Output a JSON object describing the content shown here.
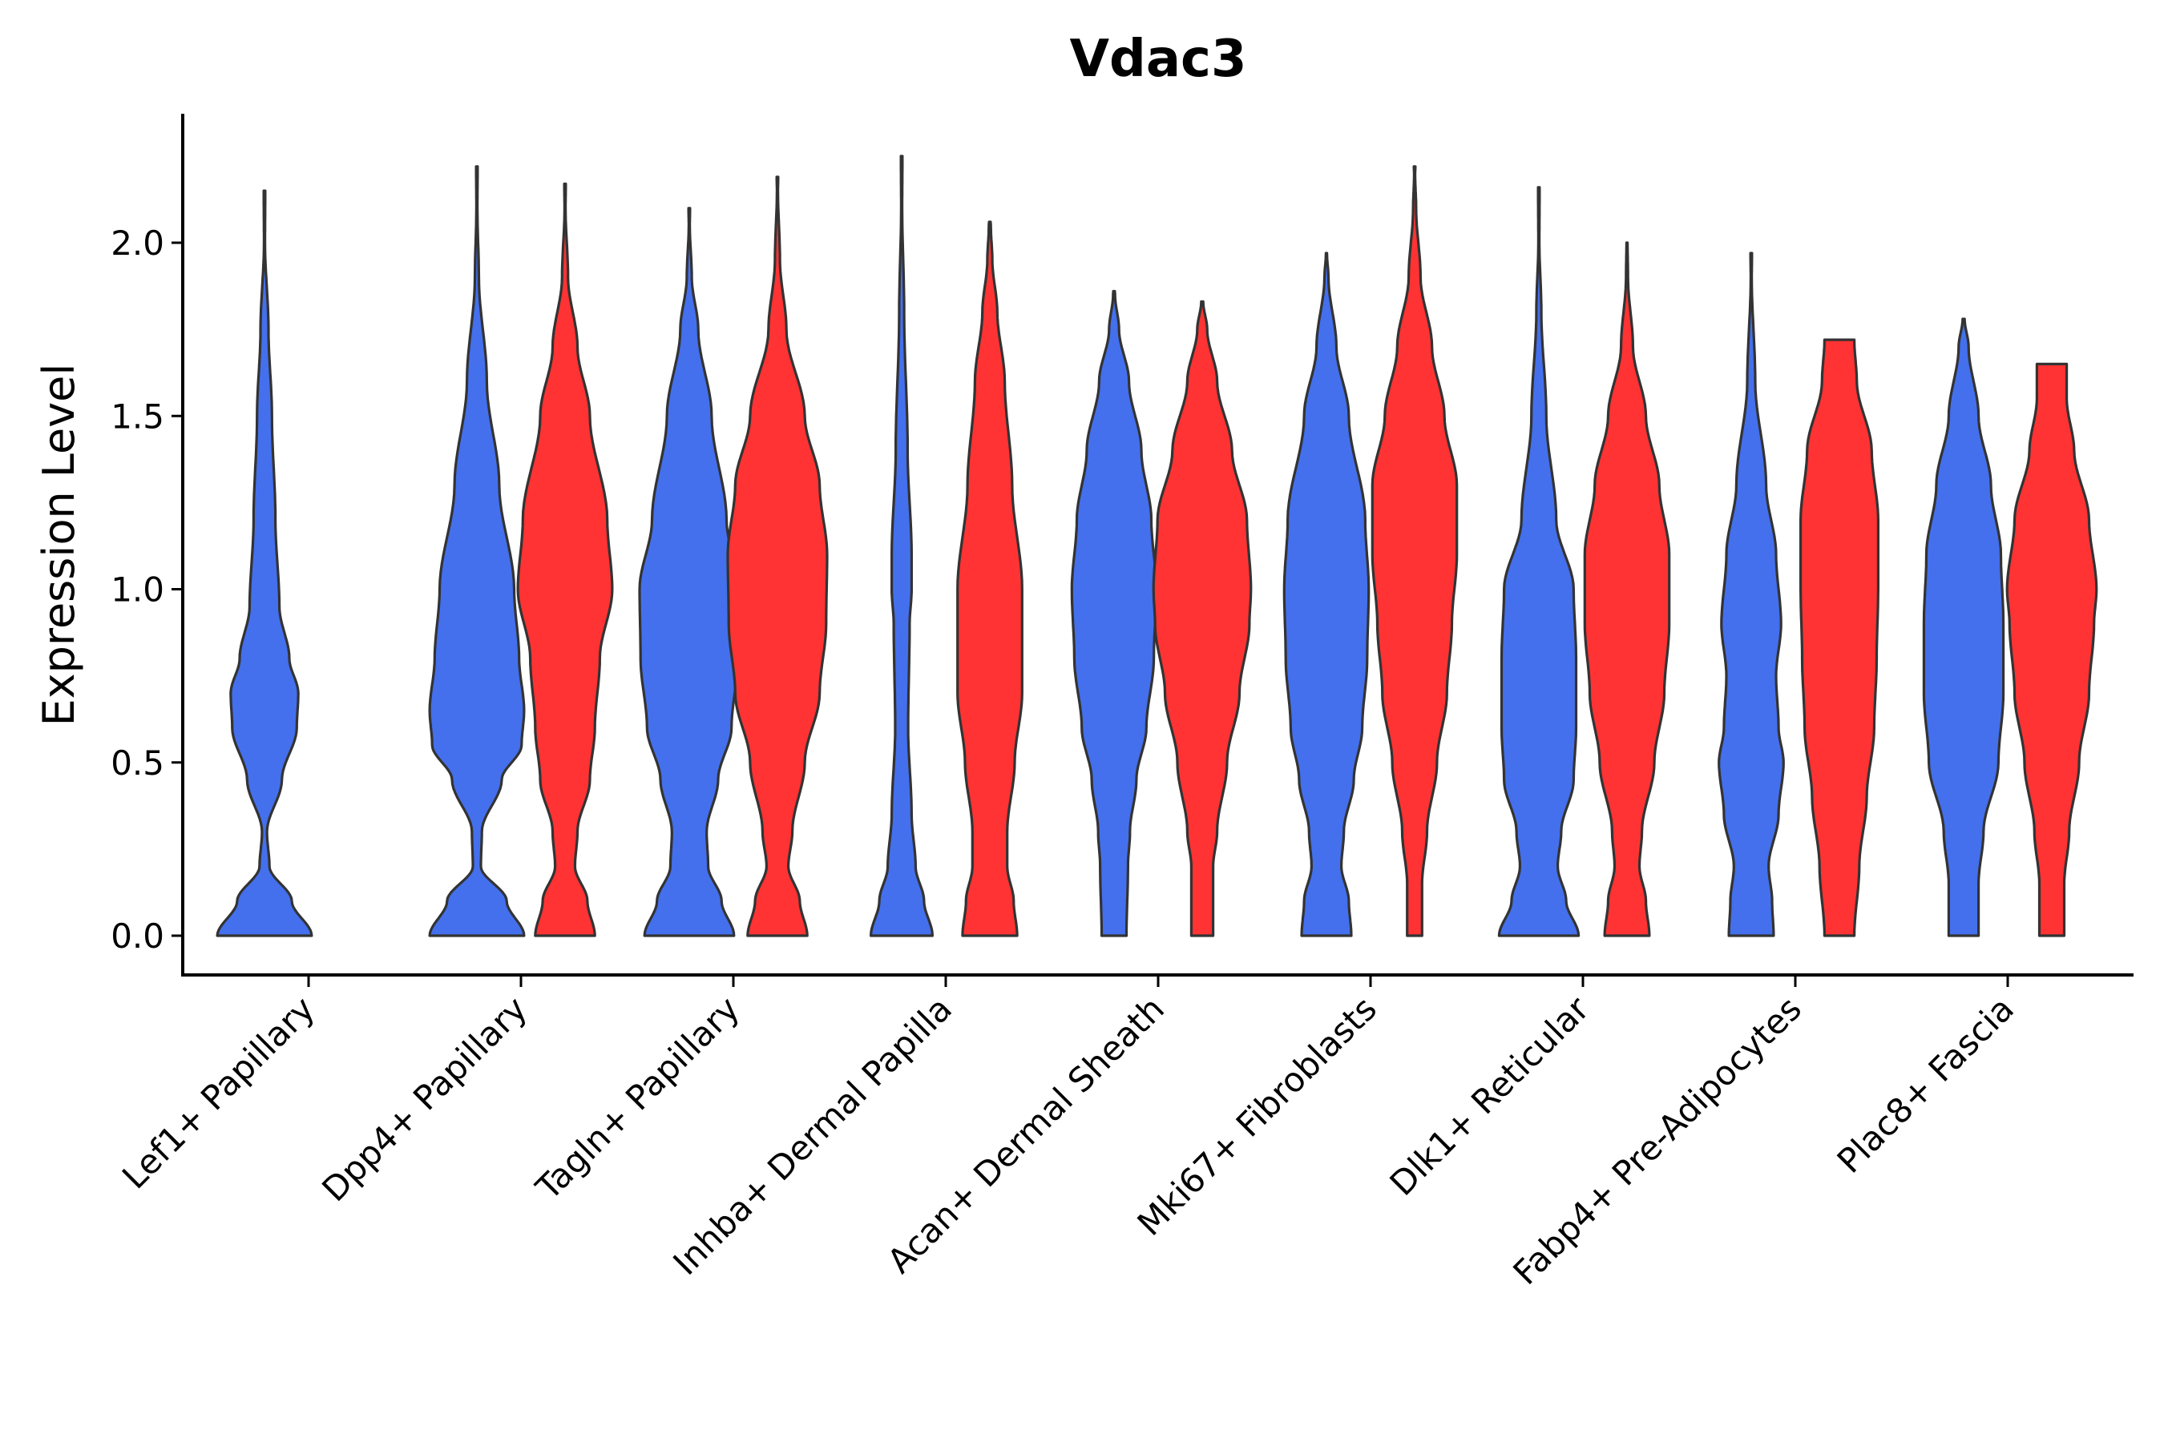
{
  "chart_data": {
    "type": "violin",
    "title": "Vdac3",
    "xlabel": "",
    "ylabel": "Expression Level",
    "ylim": [
      -0.11,
      2.37
    ],
    "yticks": [
      0.0,
      0.5,
      1.0,
      1.5,
      2.0
    ],
    "ytick_labels": [
      "0.0",
      "0.5",
      "1.0",
      "1.5",
      "2.0"
    ],
    "grid": false,
    "legend": "none",
    "series_colors": {
      "group1": "#4470ED",
      "group2": "#FF3333"
    },
    "categories": [
      "Lef1+ Papillary",
      "Dpp4+ Papillary",
      "Tagln+ Papillary",
      "Inhba+ Dermal Papilla",
      "Acan+ Dermal Sheath",
      "Mki67+ Fibroblasts",
      "Dlk1+ Reticular",
      "Fabp4+ Pre-Adipocytes",
      "Plac8+ Fascia"
    ],
    "violins": [
      {
        "category": "Lef1+ Papillary",
        "group": "group1",
        "max": 2.15,
        "profile": [
          [
            0.0,
            0.95
          ],
          [
            0.1,
            0.55
          ],
          [
            0.2,
            0.1
          ],
          [
            0.3,
            0.05
          ],
          [
            0.45,
            0.35
          ],
          [
            0.6,
            0.65
          ],
          [
            0.7,
            0.68
          ],
          [
            0.8,
            0.5
          ],
          [
            0.95,
            0.3
          ],
          [
            1.2,
            0.22
          ],
          [
            1.5,
            0.15
          ],
          [
            1.75,
            0.08
          ],
          [
            2.0,
            0.01
          ]
        ]
      },
      {
        "category": "Dpp4+ Papillary",
        "group": "group1",
        "max": 2.22,
        "profile": [
          [
            0.0,
            0.95
          ],
          [
            0.1,
            0.6
          ],
          [
            0.2,
            0.08
          ],
          [
            0.3,
            0.1
          ],
          [
            0.45,
            0.5
          ],
          [
            0.55,
            0.9
          ],
          [
            0.65,
            0.95
          ],
          [
            0.8,
            0.85
          ],
          [
            1.0,
            0.75
          ],
          [
            1.3,
            0.45
          ],
          [
            1.6,
            0.2
          ],
          [
            1.9,
            0.04
          ],
          [
            2.1,
            0.01
          ]
        ]
      },
      {
        "category": "Dpp4+ Papillary",
        "group": "group2",
        "max": 2.17,
        "profile": [
          [
            0.0,
            0.6
          ],
          [
            0.1,
            0.45
          ],
          [
            0.2,
            0.2
          ],
          [
            0.3,
            0.25
          ],
          [
            0.45,
            0.5
          ],
          [
            0.6,
            0.6
          ],
          [
            0.8,
            0.7
          ],
          [
            1.0,
            0.95
          ],
          [
            1.2,
            0.85
          ],
          [
            1.5,
            0.5
          ],
          [
            1.7,
            0.25
          ],
          [
            1.9,
            0.06
          ],
          [
            2.1,
            0.01
          ]
        ]
      },
      {
        "category": "Tagln+ Papillary",
        "group": "group1",
        "max": 2.1,
        "profile": [
          [
            0.0,
            0.9
          ],
          [
            0.1,
            0.65
          ],
          [
            0.2,
            0.38
          ],
          [
            0.3,
            0.35
          ],
          [
            0.45,
            0.58
          ],
          [
            0.6,
            0.85
          ],
          [
            0.8,
            0.98
          ],
          [
            1.0,
            1.0
          ],
          [
            1.2,
            0.75
          ],
          [
            1.5,
            0.45
          ],
          [
            1.75,
            0.18
          ],
          [
            1.9,
            0.05
          ],
          [
            2.05,
            0.01
          ]
        ]
      },
      {
        "category": "Tagln+ Papillary",
        "group": "group2",
        "max": 2.19,
        "profile": [
          [
            0.0,
            0.6
          ],
          [
            0.1,
            0.45
          ],
          [
            0.2,
            0.22
          ],
          [
            0.3,
            0.3
          ],
          [
            0.5,
            0.55
          ],
          [
            0.7,
            0.85
          ],
          [
            0.9,
            0.98
          ],
          [
            1.1,
            1.0
          ],
          [
            1.3,
            0.85
          ],
          [
            1.5,
            0.55
          ],
          [
            1.75,
            0.18
          ],
          [
            1.95,
            0.05
          ],
          [
            2.15,
            0.01
          ]
        ]
      },
      {
        "category": "Inhba+ Dermal Papilla",
        "group": "group1",
        "max": 2.25,
        "profile": [
          [
            0.0,
            0.62
          ],
          [
            0.1,
            0.45
          ],
          [
            0.2,
            0.28
          ],
          [
            0.35,
            0.2
          ],
          [
            0.6,
            0.13
          ],
          [
            0.9,
            0.16
          ],
          [
            1.0,
            0.2
          ],
          [
            1.1,
            0.2
          ],
          [
            1.4,
            0.12
          ],
          [
            1.8,
            0.05
          ],
          [
            2.1,
            0.01
          ]
        ]
      },
      {
        "category": "Inhba+ Dermal Papilla",
        "group": "group2",
        "max": 2.06,
        "profile": [
          [
            0.0,
            0.55
          ],
          [
            0.1,
            0.48
          ],
          [
            0.2,
            0.35
          ],
          [
            0.3,
            0.35
          ],
          [
            0.5,
            0.5
          ],
          [
            0.7,
            0.65
          ],
          [
            1.0,
            0.65
          ],
          [
            1.3,
            0.45
          ],
          [
            1.6,
            0.3
          ],
          [
            1.8,
            0.15
          ],
          [
            1.95,
            0.05
          ],
          [
            2.05,
            0.02
          ]
        ]
      },
      {
        "category": "Acan+ Dermal Sheath",
        "group": "group1",
        "max": 1.86,
        "profile": [
          [
            0.0,
            0.25
          ],
          [
            0.2,
            0.28
          ],
          [
            0.3,
            0.32
          ],
          [
            0.45,
            0.45
          ],
          [
            0.6,
            0.65
          ],
          [
            0.8,
            0.8
          ],
          [
            1.0,
            0.85
          ],
          [
            1.2,
            0.75
          ],
          [
            1.4,
            0.55
          ],
          [
            1.6,
            0.3
          ],
          [
            1.75,
            0.1
          ],
          [
            1.85,
            0.02
          ]
        ]
      },
      {
        "category": "Acan+ Dermal Sheath",
        "group": "group2",
        "max": 1.83,
        "profile": [
          [
            0.0,
            0.22
          ],
          [
            0.2,
            0.22
          ],
          [
            0.3,
            0.3
          ],
          [
            0.5,
            0.5
          ],
          [
            0.7,
            0.75
          ],
          [
            0.9,
            0.95
          ],
          [
            1.0,
            0.98
          ],
          [
            1.2,
            0.9
          ],
          [
            1.4,
            0.6
          ],
          [
            1.6,
            0.3
          ],
          [
            1.75,
            0.1
          ],
          [
            1.83,
            0.02
          ]
        ]
      },
      {
        "category": "Mki67+ Fibroblasts",
        "group": "group1",
        "max": 1.97,
        "profile": [
          [
            0.0,
            0.5
          ],
          [
            0.1,
            0.45
          ],
          [
            0.2,
            0.3
          ],
          [
            0.3,
            0.35
          ],
          [
            0.45,
            0.55
          ],
          [
            0.6,
            0.72
          ],
          [
            0.8,
            0.82
          ],
          [
            1.0,
            0.85
          ],
          [
            1.2,
            0.78
          ],
          [
            1.5,
            0.45
          ],
          [
            1.7,
            0.2
          ],
          [
            1.9,
            0.04
          ],
          [
            1.97,
            0.01
          ]
        ]
      },
      {
        "category": "Mki67+ Fibroblasts",
        "group": "group2",
        "max": 2.22,
        "profile": [
          [
            0.0,
            0.15
          ],
          [
            0.15,
            0.15
          ],
          [
            0.3,
            0.25
          ],
          [
            0.5,
            0.45
          ],
          [
            0.7,
            0.65
          ],
          [
            0.9,
            0.75
          ],
          [
            1.1,
            0.85
          ],
          [
            1.3,
            0.85
          ],
          [
            1.5,
            0.6
          ],
          [
            1.7,
            0.35
          ],
          [
            1.9,
            0.12
          ],
          [
            2.1,
            0.03
          ],
          [
            2.2,
            0.01
          ]
        ]
      },
      {
        "category": "Dlk1+ Reticular",
        "group": "group1",
        "max": 2.16,
        "profile": [
          [
            0.0,
            0.8
          ],
          [
            0.1,
            0.55
          ],
          [
            0.2,
            0.38
          ],
          [
            0.3,
            0.45
          ],
          [
            0.45,
            0.7
          ],
          [
            0.6,
            0.75
          ],
          [
            0.8,
            0.75
          ],
          [
            1.0,
            0.7
          ],
          [
            1.2,
            0.35
          ],
          [
            1.5,
            0.15
          ],
          [
            1.8,
            0.05
          ],
          [
            2.0,
            0.01
          ]
        ]
      },
      {
        "category": "Dlk1+ Reticular",
        "group": "group2",
        "max": 2.0,
        "profile": [
          [
            0.0,
            0.45
          ],
          [
            0.1,
            0.38
          ],
          [
            0.2,
            0.25
          ],
          [
            0.3,
            0.3
          ],
          [
            0.5,
            0.55
          ],
          [
            0.7,
            0.75
          ],
          [
            0.9,
            0.85
          ],
          [
            1.1,
            0.85
          ],
          [
            1.3,
            0.65
          ],
          [
            1.5,
            0.38
          ],
          [
            1.7,
            0.12
          ],
          [
            1.9,
            0.02
          ],
          [
            2.0,
            0.01
          ]
        ]
      },
      {
        "category": "Fabp4+ Pre-Adipocytes",
        "group": "group1",
        "max": 1.97,
        "profile": [
          [
            0.0,
            0.45
          ],
          [
            0.1,
            0.42
          ],
          [
            0.2,
            0.35
          ],
          [
            0.35,
            0.55
          ],
          [
            0.5,
            0.65
          ],
          [
            0.6,
            0.55
          ],
          [
            0.75,
            0.5
          ],
          [
            0.9,
            0.6
          ],
          [
            1.1,
            0.5
          ],
          [
            1.3,
            0.3
          ],
          [
            1.6,
            0.08
          ],
          [
            1.9,
            0.01
          ]
        ]
      },
      {
        "category": "Fabp4+ Pre-Adipocytes",
        "group": "group2",
        "max": 1.72,
        "profile": [
          [
            0.0,
            0.3
          ],
          [
            0.2,
            0.4
          ],
          [
            0.4,
            0.55
          ],
          [
            0.6,
            0.7
          ],
          [
            0.8,
            0.75
          ],
          [
            1.0,
            0.78
          ],
          [
            1.2,
            0.78
          ],
          [
            1.4,
            0.65
          ],
          [
            1.6,
            0.35
          ],
          [
            1.72,
            0.3
          ]
        ]
      },
      {
        "category": "Plac8+ Fascia",
        "group": "group1",
        "max": 1.78,
        "profile": [
          [
            0.0,
            0.3
          ],
          [
            0.15,
            0.3
          ],
          [
            0.3,
            0.4
          ],
          [
            0.5,
            0.7
          ],
          [
            0.7,
            0.8
          ],
          [
            0.9,
            0.8
          ],
          [
            1.1,
            0.75
          ],
          [
            1.3,
            0.55
          ],
          [
            1.5,
            0.3
          ],
          [
            1.7,
            0.1
          ],
          [
            1.78,
            0.02
          ]
        ]
      },
      {
        "category": "Plac8+ Fascia",
        "group": "group2",
        "max": 1.65,
        "profile": [
          [
            0.0,
            0.25
          ],
          [
            0.15,
            0.25
          ],
          [
            0.3,
            0.35
          ],
          [
            0.5,
            0.55
          ],
          [
            0.7,
            0.75
          ],
          [
            0.9,
            0.85
          ],
          [
            1.0,
            0.9
          ],
          [
            1.2,
            0.75
          ],
          [
            1.4,
            0.45
          ],
          [
            1.55,
            0.3
          ],
          [
            1.65,
            0.3
          ]
        ]
      }
    ]
  }
}
